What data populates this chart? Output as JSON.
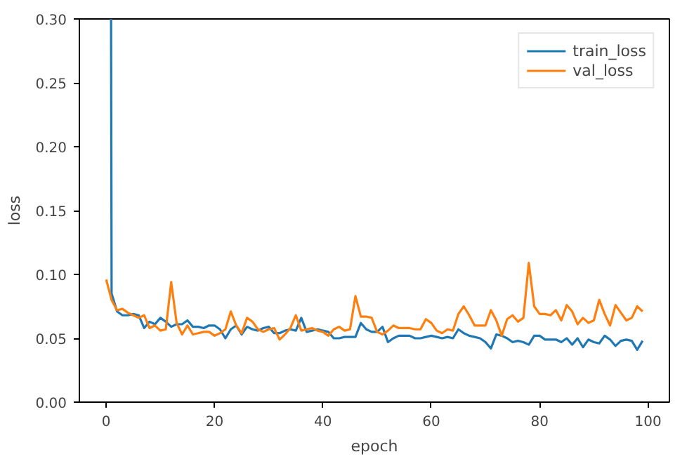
{
  "chart_data": {
    "type": "line",
    "xlabel": "epoch",
    "ylabel": "loss",
    "xlim": [
      -4.95,
      103.95
    ],
    "xticks": [
      0,
      20,
      40,
      60,
      80,
      100
    ],
    "ylim": [
      0,
      0.3
    ],
    "yticks": [
      {
        "value": 0,
        "label": "0.00"
      },
      {
        "value": 0.05,
        "label": "0.05"
      },
      {
        "value": 0.1,
        "label": "0.10"
      },
      {
        "value": 0.15,
        "label": "0.15"
      },
      {
        "value": 0.2,
        "label": "0.20"
      },
      {
        "value": 0.25,
        "label": "0.25"
      },
      {
        "value": 0.3,
        "label": "0.30"
      }
    ],
    "grid": false,
    "legend": "top right",
    "line_style": "solid",
    "series": [
      {
        "name": "train_loss",
        "color": "#1f77b4",
        "x": [
          0.9,
          1,
          2,
          3,
          4,
          5,
          6,
          7,
          8,
          9,
          10,
          11,
          12,
          13,
          14,
          15,
          16,
          17,
          18,
          19,
          20,
          21,
          22,
          23,
          24,
          25,
          26,
          27,
          28,
          29,
          30,
          31,
          32,
          33,
          34,
          35,
          36,
          37,
          38,
          39,
          40,
          41,
          42,
          43,
          44,
          45,
          46,
          47,
          48,
          49,
          50,
          51,
          52,
          53,
          54,
          55,
          56,
          57,
          58,
          59,
          60,
          61,
          62,
          63,
          64,
          65,
          66,
          67,
          68,
          69,
          70,
          71,
          72,
          73,
          74,
          75,
          76,
          77,
          78,
          79,
          80,
          81,
          82,
          83,
          84,
          85,
          86,
          87,
          88,
          89,
          90,
          91,
          92,
          93,
          94,
          95,
          96,
          97,
          98,
          99
        ],
        "values": [
          0.3,
          0.085,
          0.071,
          0.068,
          0.068,
          0.069,
          0.068,
          0.058,
          0.063,
          0.061,
          0.066,
          0.063,
          0.059,
          0.061,
          0.061,
          0.064,
          0.059,
          0.059,
          0.058,
          0.06,
          0.06,
          0.057,
          0.05,
          0.057,
          0.06,
          0.053,
          0.059,
          0.057,
          0.056,
          0.058,
          0.059,
          0.054,
          0.054,
          0.056,
          0.057,
          0.056,
          0.066,
          0.055,
          0.056,
          0.057,
          0.056,
          0.055,
          0.05,
          0.05,
          0.051,
          0.051,
          0.051,
          0.062,
          0.057,
          0.055,
          0.055,
          0.059,
          0.047,
          0.05,
          0.052,
          0.052,
          0.052,
          0.05,
          0.05,
          0.051,
          0.052,
          0.051,
          0.05,
          0.051,
          0.05,
          0.057,
          0.054,
          0.052,
          0.051,
          0.05,
          0.047,
          0.042,
          0.053,
          0.052,
          0.05,
          0.047,
          0.048,
          0.047,
          0.045,
          0.052,
          0.052,
          0.049,
          0.049,
          0.049,
          0.047,
          0.05,
          0.045,
          0.05,
          0.043,
          0.049,
          0.047,
          0.046,
          0.052,
          0.049,
          0.044,
          0.048,
          0.049,
          0.048,
          0.041,
          0.048
        ]
      },
      {
        "name": "val_loss",
        "color": "#ff7f0e",
        "x": [
          0,
          1,
          2,
          3,
          4,
          5,
          6,
          7,
          8,
          9,
          10,
          11,
          12,
          13,
          14,
          15,
          16,
          17,
          18,
          19,
          20,
          21,
          22,
          23,
          24,
          25,
          26,
          27,
          28,
          29,
          30,
          31,
          32,
          33,
          34,
          35,
          36,
          37,
          38,
          39,
          40,
          41,
          42,
          43,
          44,
          45,
          46,
          47,
          48,
          49,
          50,
          51,
          52,
          53,
          54,
          55,
          56,
          57,
          58,
          59,
          60,
          61,
          62,
          63,
          64,
          65,
          66,
          67,
          68,
          69,
          70,
          71,
          72,
          73,
          74,
          75,
          76,
          77,
          78,
          79,
          80,
          81,
          82,
          83,
          84,
          85,
          86,
          87,
          88,
          89,
          90,
          91,
          92,
          93,
          94,
          95,
          96,
          97,
          98,
          99
        ],
        "values": [
          0.096,
          0.08,
          0.072,
          0.073,
          0.07,
          0.068,
          0.066,
          0.068,
          0.058,
          0.06,
          0.056,
          0.057,
          0.094,
          0.062,
          0.053,
          0.06,
          0.053,
          0.054,
          0.055,
          0.055,
          0.052,
          0.054,
          0.057,
          0.071,
          0.06,
          0.054,
          0.066,
          0.063,
          0.057,
          0.055,
          0.057,
          0.058,
          0.049,
          0.053,
          0.058,
          0.068,
          0.056,
          0.057,
          0.058,
          0.056,
          0.055,
          0.052,
          0.057,
          0.059,
          0.056,
          0.057,
          0.083,
          0.067,
          0.067,
          0.066,
          0.055,
          0.053,
          0.056,
          0.06,
          0.058,
          0.058,
          0.058,
          0.057,
          0.057,
          0.065,
          0.062,
          0.056,
          0.054,
          0.057,
          0.056,
          0.069,
          0.075,
          0.068,
          0.06,
          0.06,
          0.06,
          0.072,
          0.064,
          0.052,
          0.065,
          0.068,
          0.063,
          0.066,
          0.109,
          0.075,
          0.069,
          0.069,
          0.068,
          0.072,
          0.064,
          0.076,
          0.071,
          0.061,
          0.066,
          0.062,
          0.064,
          0.08,
          0.069,
          0.06,
          0.076,
          0.07,
          0.064,
          0.066,
          0.075,
          0.071
        ]
      }
    ]
  }
}
